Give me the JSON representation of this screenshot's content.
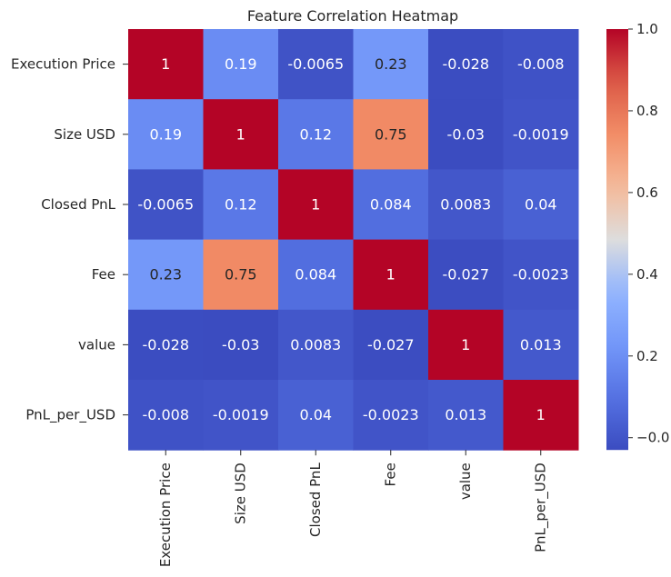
{
  "chart_data": {
    "type": "heatmap",
    "title": "Feature Correlation Heatmap",
    "rows": [
      "Execution Price",
      "Size USD",
      "Closed PnL",
      "Fee",
      "value",
      "PnL_per_USD"
    ],
    "columns": [
      "Execution Price",
      "Size USD",
      "Closed PnL",
      "Fee",
      "value",
      "PnL_per_USD"
    ],
    "values": [
      [
        1,
        0.19,
        -0.0065,
        0.23,
        -0.028,
        -0.008
      ],
      [
        0.19,
        1,
        0.12,
        0.75,
        -0.03,
        -0.0019
      ],
      [
        -0.0065,
        0.12,
        1,
        0.084,
        0.0083,
        0.04
      ],
      [
        0.23,
        0.75,
        0.084,
        1,
        -0.027,
        -0.0023
      ],
      [
        -0.028,
        -0.03,
        0.0083,
        -0.027,
        1,
        0.013
      ],
      [
        -0.008,
        -0.0019,
        0.04,
        -0.0023,
        0.013,
        1
      ]
    ],
    "labels": [
      [
        "1",
        "0.19",
        "-0.0065",
        "0.23",
        "-0.028",
        "-0.008"
      ],
      [
        "0.19",
        "1",
        "0.12",
        "0.75",
        "-0.03",
        "-0.0019"
      ],
      [
        "-0.0065",
        "0.12",
        "1",
        "0.084",
        "0.0083",
        "0.04"
      ],
      [
        "0.23",
        "0.75",
        "0.084",
        "1",
        "-0.027",
        "-0.0023"
      ],
      [
        "-0.028",
        "-0.03",
        "0.0083",
        "-0.027",
        "1",
        "0.013"
      ],
      [
        "-0.008",
        "-0.0019",
        "0.04",
        "-0.0023",
        "0.013",
        "1"
      ]
    ],
    "colormap": "coolwarm",
    "colorbar": {
      "range": [
        -0.03,
        1
      ],
      "ticks": [
        0,
        0.2,
        0.4,
        0.6,
        0.8,
        1
      ],
      "tick_labels": [
        "−0.0",
        "0.2",
        "0.4",
        "0.6",
        "0.8",
        "1.0"
      ]
    },
    "annotated": true,
    "grid": false
  }
}
